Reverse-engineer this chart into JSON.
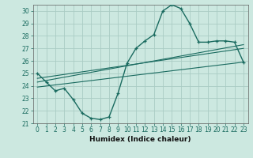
{
  "xlabel": "Humidex (Indice chaleur)",
  "background_color": "#cce8e0",
  "grid_color": "#aaccc4",
  "line_color": "#1a6b60",
  "xlim": [
    -0.5,
    23.5
  ],
  "ylim": [
    21,
    30.5
  ],
  "xticks": [
    0,
    1,
    2,
    3,
    4,
    5,
    6,
    7,
    8,
    9,
    10,
    11,
    12,
    13,
    14,
    15,
    16,
    17,
    18,
    19,
    20,
    21,
    22,
    23
  ],
  "yticks": [
    21,
    22,
    23,
    24,
    25,
    26,
    27,
    28,
    29,
    30
  ],
  "main_curve_x": [
    0,
    1,
    2,
    3,
    4,
    5,
    6,
    7,
    8,
    9,
    10,
    11,
    12,
    13,
    14,
    15,
    16,
    17,
    18,
    19,
    20,
    21,
    22,
    23
  ],
  "main_curve_y": [
    25.0,
    24.3,
    23.6,
    23.8,
    22.9,
    21.8,
    21.4,
    21.3,
    21.5,
    23.4,
    25.8,
    27.0,
    27.6,
    28.1,
    30.0,
    30.5,
    30.2,
    29.0,
    27.5,
    27.5,
    27.6,
    27.6,
    27.5,
    25.9
  ],
  "line1_x": [
    0,
    23
  ],
  "line1_y": [
    24.6,
    27.0
  ],
  "line2_x": [
    0,
    23
  ],
  "line2_y": [
    24.3,
    27.3
  ],
  "line3_x": [
    0,
    23
  ],
  "line3_y": [
    23.9,
    25.9
  ],
  "tick_fontsize": 5.5,
  "xlabel_fontsize": 6.5
}
